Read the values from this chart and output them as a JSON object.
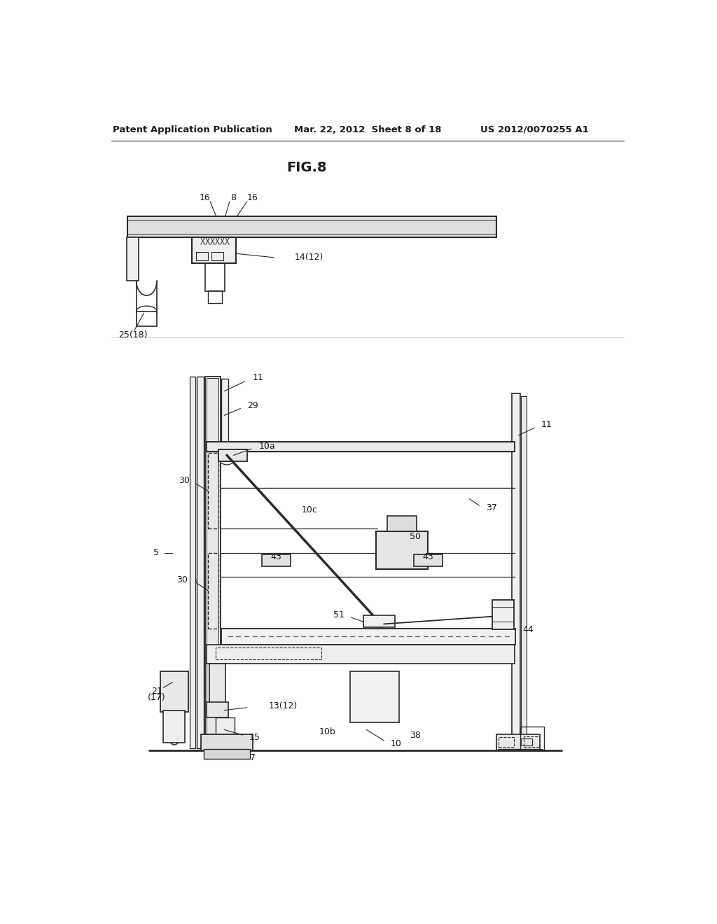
{
  "bg_color": "#ffffff",
  "header_left": "Patent Application Publication",
  "header_center": "Mar. 22, 2012  Sheet 8 of 18",
  "header_right": "US 2012/0070255 A1",
  "fig_title": "FIG.8",
  "line_color": "#2a2a2a",
  "text_color": "#1a1a1a"
}
